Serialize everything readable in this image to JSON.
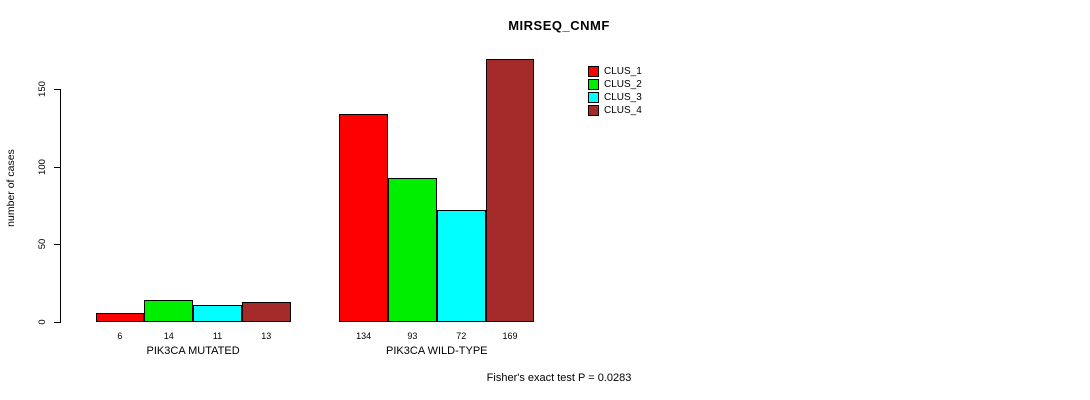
{
  "chart_data": {
    "type": "bar",
    "title": "MIRSEQ_CNMF",
    "ylabel": "number of cases",
    "xlabel": "",
    "ylim": [
      0,
      150
    ],
    "yticks": [
      0,
      50,
      100,
      150
    ],
    "grid": false,
    "legend_position": "top-right",
    "categories": [
      "PIK3CA MUTATED",
      "PIK3CA WILD-TYPE"
    ],
    "series": [
      {
        "name": "CLUS_1",
        "color": "#ff0000",
        "values": [
          6,
          134
        ]
      },
      {
        "name": "CLUS_2",
        "color": "#00ee00",
        "values": [
          14,
          93
        ]
      },
      {
        "name": "CLUS_3",
        "color": "#00ffff",
        "values": [
          11,
          72
        ]
      },
      {
        "name": "CLUS_4",
        "color": "#a52a2a",
        "values": [
          13,
          169
        ]
      }
    ],
    "bar_labels": [
      [
        6,
        14,
        11,
        13
      ],
      [
        134,
        93,
        72,
        169
      ]
    ],
    "annotation": "Fisher's exact test P = 0.0283"
  }
}
